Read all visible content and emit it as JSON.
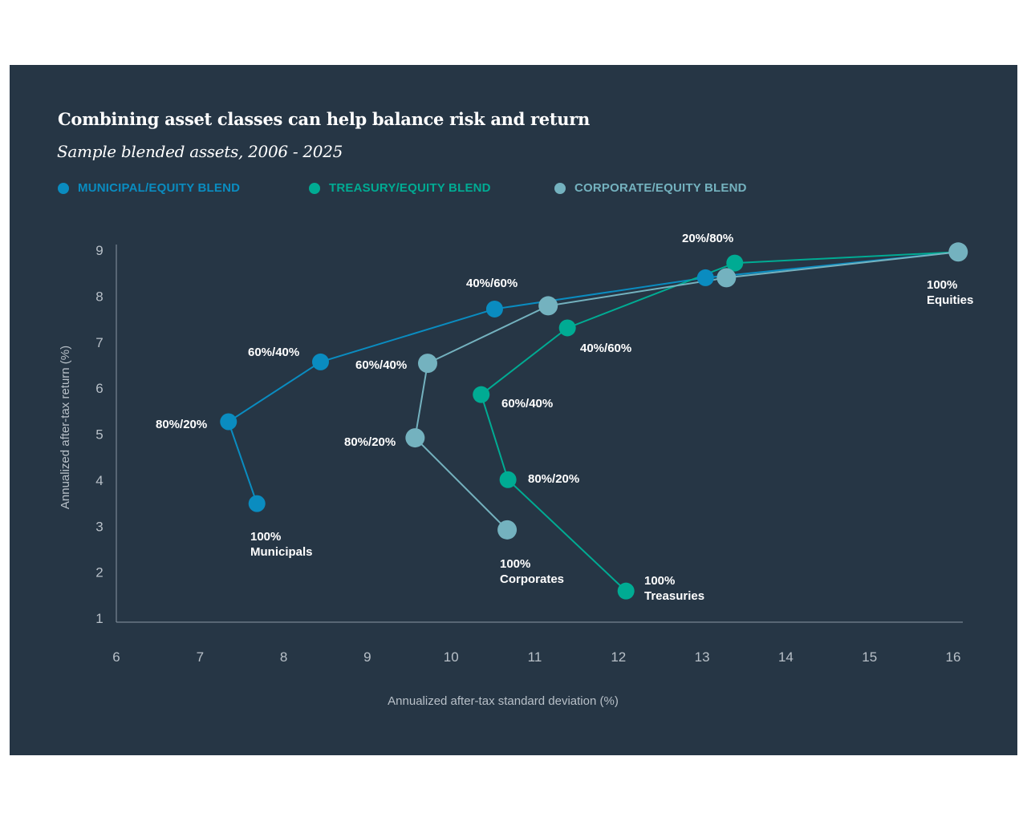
{
  "chart_data": {
    "type": "line",
    "title": "Combining asset classes can help balance risk and return",
    "subtitle": "Sample blended assets, 2006 - 2025",
    "xlabel": "Annualized after-tax standard deviation (%)",
    "ylabel": "Annualized after-tax return (%)",
    "xlim": [
      6,
      16
    ],
    "ylim": [
      1,
      9
    ],
    "xticks": [
      "6",
      "7",
      "8",
      "9",
      "10",
      "11",
      "12",
      "13",
      "14",
      "15",
      "16"
    ],
    "yticks": [
      "1",
      "2",
      "3",
      "4",
      "5",
      "6",
      "7",
      "8",
      "9"
    ],
    "grid": false,
    "legend_position": "top-left",
    "series": [
      {
        "name": "MUNICIPAL/EQUITY BLEND",
        "color": "#0a8cc0",
        "points": [
          [
            7.68,
            3.49
          ],
          [
            7.34,
            5.27
          ],
          [
            8.44,
            6.57
          ],
          [
            10.52,
            7.72
          ],
          [
            13.04,
            8.4
          ],
          [
            16.06,
            8.96
          ]
        ]
      },
      {
        "name": "TREASURY/EQUITY BLEND",
        "color": "#00ab93",
        "points": [
          [
            12.09,
            1.59
          ],
          [
            10.68,
            4.01
          ],
          [
            10.36,
            5.86
          ],
          [
            11.39,
            7.31
          ],
          [
            13.39,
            8.72
          ],
          [
            16.06,
            8.96
          ]
        ]
      },
      {
        "name": "CORPORATE/EQUITY BLEND",
        "color": "#74b2bf",
        "points": [
          [
            10.67,
            2.92
          ],
          [
            9.57,
            4.92
          ],
          [
            9.72,
            6.54
          ],
          [
            11.16,
            7.79
          ],
          [
            13.29,
            8.4
          ],
          [
            16.06,
            8.96
          ]
        ]
      }
    ],
    "annotations": [
      {
        "text": [
          "20%/80%"
        ]
      },
      {
        "text": [
          "100%",
          "Equities"
        ]
      },
      {
        "text": [
          "40%/60%"
        ]
      },
      {
        "text": [
          "60%/40%"
        ]
      },
      {
        "text": [
          "80%/20%"
        ]
      },
      {
        "text": [
          "100%",
          "Municipals"
        ]
      },
      {
        "text": [
          "60%/40%"
        ]
      },
      {
        "text": [
          "80%/20%"
        ]
      },
      {
        "text": [
          "100%",
          "Corporates"
        ]
      },
      {
        "text": [
          "40%/60%"
        ]
      },
      {
        "text": [
          "60%/40%"
        ]
      },
      {
        "text": [
          "80%/20%"
        ]
      },
      {
        "text": [
          "100%",
          "Treasuries"
        ]
      }
    ],
    "background": "#263645"
  }
}
